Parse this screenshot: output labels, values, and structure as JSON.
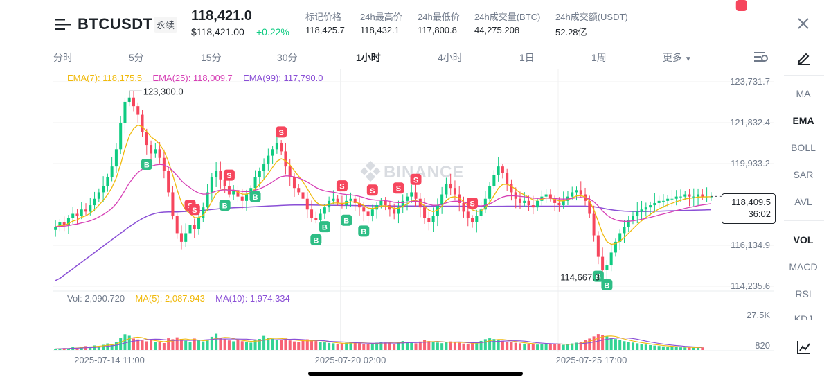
{
  "header": {
    "symbol": "BTCUSDT",
    "contract_type": "永续",
    "last_price": "118,421.0",
    "usd_price": "$118,421.00",
    "change_pct": "+0.22%",
    "stats": [
      {
        "label": "标记价格",
        "value": "118,425.7"
      },
      {
        "label": "24h最高价",
        "value": "118,432.1"
      },
      {
        "label": "24h最低价",
        "value": "117,800.8"
      },
      {
        "label": "24h成交量(BTC)",
        "value": "44,275.208"
      },
      {
        "label": "24h成交额(USDT)",
        "value": "52.28亿"
      }
    ]
  },
  "timeframes": [
    "分时",
    "5分",
    "15分",
    "30分",
    "1小时",
    "4小时",
    "1日",
    "1周",
    "更多"
  ],
  "active_timeframe": "1小时",
  "indicators_side": [
    "MA",
    "EMA",
    "BOLL",
    "SAR",
    "AVL",
    "VOL",
    "MACD",
    "RSI",
    "KDJ"
  ],
  "active_side": [
    "EMA",
    "VOL"
  ],
  "legend": {
    "ema7": "EMA(7): 118,175.5",
    "ema25": "EMA(25): 118,009.7",
    "ema99": "EMA(99): 117,790.0",
    "vol": "Vol: 2,090.720",
    "ma5": "MA(5): 2,087.943",
    "ma10": "MA(10): 1,974.334"
  },
  "watermark": "BINANCE",
  "colors": {
    "up": "#0ecb81",
    "down": "#f6465d",
    "ema7": "#f0b90b",
    "ema25": "#d63fb5",
    "ema99": "#8a4fd6",
    "signal_sell": "#f6465d",
    "signal_buy": "#2ebd85"
  },
  "chart_data": {
    "type": "candlestick",
    "interval": "1h",
    "y_ticks": [
      123731.7,
      121832.4,
      119933.2,
      116134.9,
      114235.6
    ],
    "ylim": [
      114235.6,
      123731.7
    ],
    "x_tick_labels": [
      "2025-07-14 11:00",
      "2025-07-20 02:00",
      "2025-07-25 17:00"
    ],
    "high_marker": {
      "value": 123300.0,
      "label": "123,300.0"
    },
    "low_marker": {
      "value": 114667.3,
      "label": "114,667.3"
    },
    "last_price_tag": {
      "value": 118409.5,
      "label": "118,409.5",
      "countdown": "36:02"
    },
    "close_series": [
      117000,
      117200,
      117100,
      117400,
      117600,
      117500,
      117800,
      117700,
      118000,
      118300,
      118600,
      118900,
      119300,
      119800,
      120600,
      121800,
      122800,
      123000,
      122600,
      122200,
      121400,
      120800,
      120400,
      120600,
      120200,
      119600,
      118600,
      117500,
      116700,
      116300,
      116700,
      117100,
      116900,
      117400,
      117900,
      118600,
      119300,
      119600,
      119200,
      118900,
      118500,
      118700,
      118400,
      118200,
      118500,
      118800,
      119300,
      119600,
      119900,
      120300,
      120600,
      120900,
      120500,
      119800,
      119300,
      118800,
      118600,
      118300,
      117800,
      117400,
      117300,
      117600,
      117900,
      118200,
      118300,
      118100,
      118000,
      118200,
      118300,
      118100,
      117900,
      117700,
      117500,
      117800,
      118000,
      118200,
      118000,
      117800,
      117600,
      117900,
      118200,
      118400,
      118600,
      118300,
      117900,
      117400,
      117200,
      117500,
      118000,
      118500,
      119000,
      118800,
      118500,
      118100,
      117700,
      117400,
      117200,
      117500,
      117800,
      118300,
      118900,
      119400,
      119800,
      119500,
      119000,
      118600,
      118300,
      118100,
      118200,
      118000,
      117900,
      118200,
      118400,
      118500,
      118300,
      118100,
      118000,
      118200,
      118400,
      118600,
      118700,
      118500,
      118200,
      117600,
      116600,
      115600,
      115000,
      115200,
      115800,
      116300,
      116700,
      117000,
      117300,
      117500,
      117700,
      117800,
      117900,
      118000,
      118100,
      118200,
      118200,
      118300,
      118300,
      118400,
      118400,
      118500,
      118400,
      118400,
      118500,
      118400,
      118400,
      118400
    ],
    "ema99_series": [
      114500,
      114600,
      114750,
      114900,
      115050,
      115200,
      115350,
      115500,
      115650,
      115800,
      115950,
      116100,
      116250,
      116400,
      116550,
      116700,
      116850,
      117000,
      117130,
      117260,
      117380,
      117480,
      117560,
      117620,
      117660,
      117680,
      117690,
      117690,
      117690,
      117700,
      117710,
      117720,
      117730,
      117740,
      117760,
      117780,
      117800,
      117820,
      117840,
      117860,
      117870,
      117880,
      117890,
      117900,
      117910,
      117920,
      117930,
      117940,
      117950,
      117960,
      117970,
      117980,
      117990,
      118000,
      118005,
      118008,
      118009,
      118010,
      118009,
      118008,
      118006,
      118003,
      118000,
      117998,
      117995,
      117992,
      117990,
      117988,
      117985,
      117983,
      117980,
      117978,
      117975,
      117972,
      117970,
      117968,
      117966,
      117965,
      117964,
      117963,
      117962,
      117962,
      117962,
      117962,
      117961,
      117960,
      117958,
      117957,
      117956,
      117955,
      117955,
      117955,
      117955,
      117954,
      117952,
      117950,
      117948,
      117946,
      117945,
      117945,
      117946,
      117948,
      117950,
      117951,
      117952,
      117953,
      117953,
      117953,
      117953,
      117953,
      117953,
      117953,
      117954,
      117955,
      117955,
      117955,
      117955,
      117955,
      117956,
      117957,
      117958,
      117958,
      117956,
      117948,
      117930,
      117900,
      117860,
      117820,
      117790,
      117760,
      117740,
      117725,
      117715,
      117710,
      117708,
      117708,
      117710,
      117714,
      117718,
      117722,
      117728,
      117734,
      117740,
      117746,
      117752,
      117758,
      117762,
      117766,
      117772,
      117776,
      117782,
      117790
    ],
    "volume_series": [
      900,
      1100,
      1500,
      1300,
      2200,
      1800,
      2500,
      3100,
      2800,
      3600,
      3200,
      4100,
      5200,
      4800,
      6600,
      9800,
      12500,
      11300,
      9100,
      8400,
      7600,
      6900,
      7800,
      6500,
      6100,
      5500,
      9300,
      8600,
      10100,
      8800,
      7300,
      6500,
      9100,
      7600,
      6800,
      8200,
      10500,
      12900,
      9800,
      8700,
      7600,
      6900,
      8100,
      7000,
      6500,
      5800,
      7900,
      8800,
      11200,
      9700,
      8900,
      7800,
      8400,
      9200,
      7600,
      6800,
      6200,
      7300,
      8500,
      7900,
      7100,
      6500,
      6000,
      5600,
      5300,
      4800,
      5200,
      5800,
      6300,
      5900,
      5400,
      4900,
      4600,
      5300,
      5800,
      6300,
      5900,
      5300,
      4800,
      6200,
      7100,
      6500,
      5900,
      5300,
      6700,
      7800,
      7100,
      6500,
      5900,
      5400,
      6100,
      6800,
      6200,
      5700,
      5100,
      4800,
      5500,
      6100,
      7200,
      8600,
      9300,
      8700,
      7900,
      7200,
      6600,
      6100,
      5700,
      5300,
      5000,
      4700,
      4500,
      4300,
      4800,
      5200,
      4900,
      4600,
      4400,
      4100,
      4500,
      5200,
      5800,
      6600,
      7900,
      9100,
      10800,
      12600,
      11900,
      10700,
      9600,
      8700,
      7800,
      7000,
      6400,
      5900,
      5300,
      4800,
      4300,
      3900,
      3500,
      3200,
      2900,
      2700,
      2500,
      2300,
      2100,
      2000,
      1950,
      1900,
      2000,
      2090
    ],
    "volume_ticks": [
      27500,
      820
    ],
    "volume_tick_labels": [
      "27.5K",
      "820"
    ],
    "signals": [
      {
        "type": "S",
        "index": 31
      },
      {
        "type": "S",
        "index": 32
      },
      {
        "type": "S",
        "index": 40
      },
      {
        "type": "S",
        "index": 52
      },
      {
        "type": "S",
        "index": 66
      },
      {
        "type": "S",
        "index": 73
      },
      {
        "type": "S",
        "index": 79
      },
      {
        "type": "S",
        "index": 83
      },
      {
        "type": "S",
        "index": 96
      },
      {
        "type": "S",
        "index": 158
      },
      {
        "type": "B",
        "index": 21
      },
      {
        "type": "B",
        "index": 39
      },
      {
        "type": "B",
        "index": 46
      },
      {
        "type": "B",
        "index": 60
      },
      {
        "type": "B",
        "index": 62
      },
      {
        "type": "B",
        "index": 67
      },
      {
        "type": "B",
        "index": 71
      },
      {
        "type": "B",
        "index": 125
      },
      {
        "type": "B",
        "index": 127
      }
    ]
  }
}
